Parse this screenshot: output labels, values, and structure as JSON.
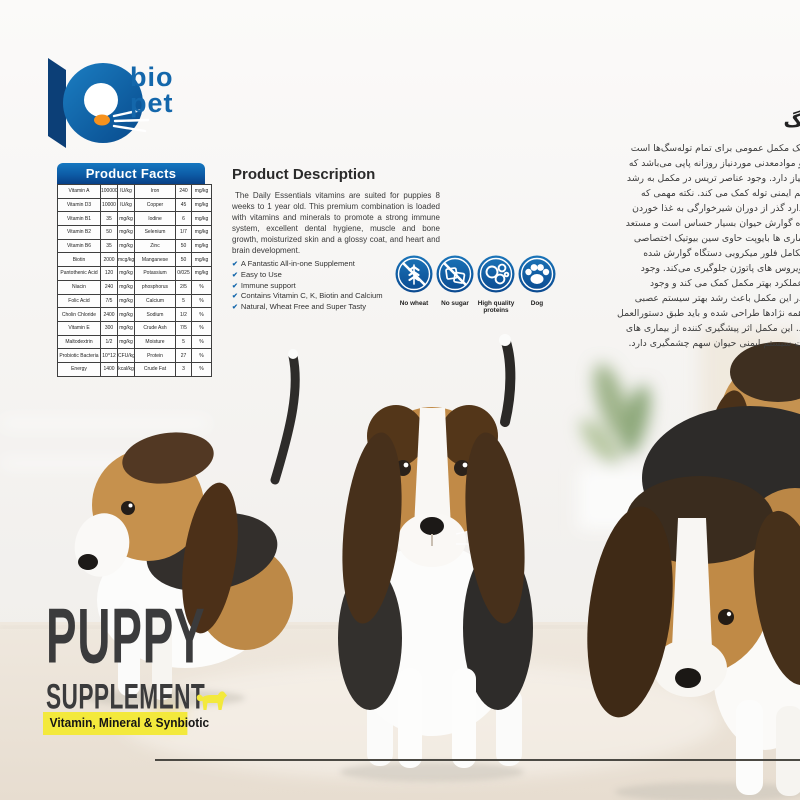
{
  "logo": {
    "line1": "bio",
    "line2": "pet"
  },
  "product_facts": {
    "title": "Product Facts",
    "rows": [
      [
        "Vitamin A",
        "100000",
        "IU/kg",
        "Iron",
        "240",
        "mg/kg"
      ],
      [
        "Vitamin D3",
        "10000",
        "IU/kg",
        "Copper",
        "45",
        "mg/kg"
      ],
      [
        "Vitamin B1",
        "35",
        "mg/kg",
        "Iodine",
        "6",
        "mg/kg"
      ],
      [
        "Vitamin B2",
        "50",
        "mg/kg",
        "Selenium",
        "1/7",
        "mg/kg"
      ],
      [
        "Vitamin B6",
        "35",
        "mg/kg",
        "Zinc",
        "50",
        "mg/kg"
      ],
      [
        "Biotin",
        "2000",
        "mcg/kg",
        "Manganese",
        "50",
        "mg/kg"
      ],
      [
        "Pantothenic Acid",
        "120",
        "mg/kg",
        "Potassium",
        "0/025",
        "mg/kg"
      ],
      [
        "Niacin",
        "240",
        "mg/kg",
        "phosphorus",
        "2/5",
        "%"
      ],
      [
        "Folic Acid",
        "7/5",
        "mg/kg",
        "Calcium",
        "5",
        "%"
      ],
      [
        "Cholin Chloride",
        "2400",
        "mg/kg",
        "Sodium",
        "1/2",
        "%"
      ],
      [
        "Vitamin E",
        "300",
        "mg/kg",
        "Crude Ash",
        "7/5",
        "%"
      ],
      [
        "Maltodextrin",
        "1/2",
        "mg/kg",
        "Moisture",
        "5",
        "%"
      ],
      [
        "Probiotic Bacteria",
        "10^12",
        "CFU/kg",
        "Protein",
        "27",
        "%"
      ],
      [
        "Energy",
        "1400",
        "kcal/kg",
        "Crude Fat",
        "3",
        "%"
      ]
    ]
  },
  "description": {
    "title": "Product Description",
    "body": "The Daily Essentials vitamins are suited for puppies 8 weeks to 1 year old. This premium combination is loaded with vitamins and minerals to promote a strong immune system, excellent dental hygiene, muscle and bone growth, moisturized skin and a glossy coat, and heart and brain development."
  },
  "check_icon": "✔",
  "features": [
    "A Fantastic All-in-one Supplement",
    "Easy to Use",
    "Immune support",
    "Contains Vitamin C, K, Biotin and Calcium",
    "Natural, Wheat Free and Super Tasty"
  ],
  "badges": [
    {
      "icon": "no-wheat-icon",
      "label": "No wheat"
    },
    {
      "icon": "no-sugar-icon",
      "label": "No sugar"
    },
    {
      "icon": "proteins-icon",
      "label": "High quality proteins"
    },
    {
      "icon": "dog-paw-icon",
      "label": "Dog"
    }
  ],
  "persian": {
    "heading": "گ",
    "lines": [
      "یک مکمل عمومی برای تمام توله‌سگ‌ها است",
      "و موادمعدنی موردنیاز روزانه پاپی می‌باشد که",
      "نیاز دارد. وجود عناصر تریس در مکمل به رشد",
      "تم ایمنی توله کمک می کند. نکته مهمی که",
      "دارد گذر از دوران شیرخوارگی به غذا خوردن",
      "اه گوارش حیوان بسیار حساس است و مستعد",
      "ماری ها بایوپت حاوی سین بیوتیک اختصاصی",
      "تکامل فلور میکروبی دستگاه گوارش شده",
      "ویروس های پاتوژن جلوگیری می‌کند. وجود",
      "عملکرد بهتر مکمل کمک می کند و وجود",
      "در این مکمل باعث رشد بهتر سیستم عصبی",
      "همه نژادها طراحی شده و باید طبق دستورالعمل",
      "د. این مکمل اثر پیشگیری کننده از بیماری های",
      "ت سیستم ایمنی حیوان سهم چشمگیری دارد."
    ]
  },
  "hero": {
    "title": "PUPPY",
    "subtitle": "SUPPLEMENT",
    "banner": "Vitamin, Mineral & Synbiotic"
  },
  "colors": {
    "brand_blue": "#1467ab",
    "facts_header_top": "#1577c0",
    "facts_header_bottom": "#083f86",
    "badge_blue": "#1a74b8",
    "accent_yellow": "#f3e93c",
    "hero_text": "#3b3b3c",
    "logo_orange": "#f6921e"
  }
}
